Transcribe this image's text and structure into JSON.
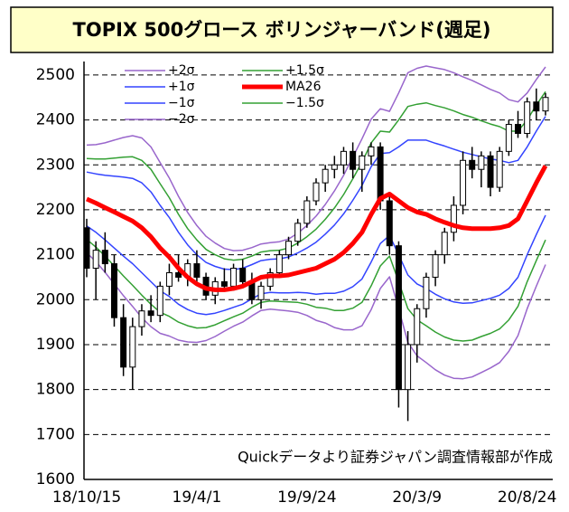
{
  "chart_data": {
    "type": "candlestick",
    "title": "TOPIX 500グロース ボリンジャーバンド(週足)",
    "annotation": "Quickデータより証券ジャパン調査情報部が作成",
    "categories": [
      "18/10/15",
      null,
      null,
      null,
      null,
      null,
      null,
      null,
      null,
      null,
      null,
      null,
      "19/4/1",
      null,
      null,
      null,
      null,
      null,
      null,
      null,
      null,
      null,
      null,
      null,
      "19/9/24",
      null,
      null,
      null,
      null,
      null,
      null,
      null,
      null,
      null,
      null,
      null,
      "20/3/9",
      null,
      null,
      null,
      null,
      null,
      null,
      null,
      null,
      null,
      null,
      null,
      "20/8/24",
      null,
      null
    ],
    "ylim": [
      1600,
      2530
    ],
    "yticks": [
      1600,
      1700,
      1800,
      1900,
      2000,
      2100,
      2200,
      2300,
      2400,
      2500
    ],
    "grid": true,
    "candles": {
      "up_color": "#ffffff",
      "down_color": "#000000",
      "open": [
        2160,
        2070,
        2110,
        2080,
        1960,
        1850,
        1940,
        1975,
        1965,
        2030,
        2060,
        2050,
        2080,
        2050,
        2010,
        2040,
        2030,
        2070,
        2040,
        2000,
        2030,
        2060,
        2100,
        2130,
        2170,
        2220,
        2260,
        2290,
        2300,
        2330,
        2290,
        2320,
        2340,
        2220,
        2120,
        1800,
        1900,
        1980,
        2050,
        2100,
        2150,
        2210,
        2310,
        2290,
        2320,
        2250,
        2330,
        2390,
        2370,
        2440,
        2420
      ],
      "high": [
        2180,
        2130,
        2150,
        2100,
        1990,
        1960,
        1990,
        2010,
        2040,
        2080,
        2100,
        2090,
        2110,
        2060,
        2050,
        2070,
        2080,
        2090,
        2060,
        2040,
        2070,
        2110,
        2140,
        2180,
        2230,
        2270,
        2300,
        2320,
        2340,
        2350,
        2330,
        2350,
        2350,
        2240,
        2130,
        1930,
        1990,
        2060,
        2110,
        2160,
        2230,
        2330,
        2340,
        2330,
        2330,
        2340,
        2400,
        2420,
        2450,
        2470,
        2460
      ],
      "low": [
        2050,
        2000,
        2060,
        1940,
        1830,
        1800,
        1920,
        1950,
        1950,
        2010,
        2040,
        2030,
        2040,
        2000,
        1990,
        2020,
        2020,
        2030,
        1990,
        1980,
        2020,
        2050,
        2090,
        2120,
        2160,
        2210,
        2240,
        2270,
        2280,
        2270,
        2240,
        2300,
        2200,
        2100,
        1760,
        1730,
        1860,
        1960,
        2030,
        2080,
        2130,
        2190,
        2270,
        2250,
        2230,
        2240,
        2320,
        2360,
        2360,
        2400,
        2410
      ],
      "close": [
        2070,
        2110,
        2080,
        1960,
        1850,
        1940,
        1975,
        1965,
        2030,
        2060,
        2050,
        2080,
        2050,
        2010,
        2040,
        2030,
        2070,
        2040,
        2000,
        2030,
        2060,
        2100,
        2130,
        2170,
        2220,
        2260,
        2290,
        2300,
        2330,
        2290,
        2320,
        2340,
        2220,
        2120,
        1800,
        1900,
        1980,
        2050,
        2100,
        2150,
        2210,
        2310,
        2290,
        2320,
        2250,
        2330,
        2390,
        2370,
        2440,
        2420,
        2450
      ]
    },
    "series": [
      {
        "name": "+2σ",
        "color": "#9966cc",
        "width": 1.5,
        "values": [
          2344,
          2345,
          2349,
          2355,
          2361,
          2365,
          2360,
          2340,
          2305,
          2271,
          2230,
          2194,
          2165,
          2141,
          2126,
          2114,
          2109,
          2110,
          2116,
          2124,
          2127,
          2129,
          2135,
          2148,
          2165,
          2186,
          2212,
          2242,
          2277,
          2317,
          2358,
          2402,
          2425,
          2419,
          2460,
          2505,
          2515,
          2520,
          2516,
          2512,
          2505,
          2496,
          2488,
          2478,
          2468,
          2460,
          2445,
          2440,
          2460,
          2490,
          2518
        ]
      },
      {
        "name": "+1.5σ",
        "color": "#33a033",
        "width": 1.5,
        "values": [
          2314,
          2313,
          2313,
          2315,
          2317,
          2318,
          2310,
          2290,
          2258,
          2227,
          2190,
          2158,
          2133,
          2112,
          2100,
          2091,
          2088,
          2090,
          2097,
          2106,
          2109,
          2110,
          2115,
          2126,
          2140,
          2157,
          2179,
          2204,
          2234,
          2269,
          2306,
          2349,
          2375,
          2373,
          2400,
          2430,
          2435,
          2438,
          2432,
          2427,
          2420,
          2412,
          2406,
          2398,
          2391,
          2385,
          2375,
          2375,
          2400,
          2433,
          2463
        ]
      },
      {
        "name": "+1σ",
        "color": "#3344ff",
        "width": 1.5,
        "values": [
          2284,
          2280,
          2277,
          2275,
          2273,
          2270,
          2260,
          2240,
          2210,
          2183,
          2150,
          2122,
          2100,
          2083,
          2074,
          2068,
          2067,
          2070,
          2078,
          2087,
          2090,
          2091,
          2095,
          2104,
          2115,
          2128,
          2146,
          2166,
          2191,
          2221,
          2254,
          2296,
          2325,
          2327,
          2340,
          2355,
          2355,
          2355,
          2348,
          2342,
          2335,
          2328,
          2323,
          2318,
          2313,
          2310,
          2305,
          2310,
          2340,
          2375,
          2408
        ]
      },
      {
        "name": "MA26",
        "color": "#ff0000",
        "width": 5,
        "values": [
          2224,
          2215,
          2205,
          2195,
          2185,
          2175,
          2160,
          2140,
          2115,
          2095,
          2070,
          2050,
          2035,
          2025,
          2022,
          2022,
          2025,
          2030,
          2040,
          2050,
          2053,
          2053,
          2055,
          2060,
          2065,
          2070,
          2080,
          2090,
          2105,
          2125,
          2150,
          2190,
          2225,
          2235,
          2220,
          2205,
          2195,
          2190,
          2180,
          2172,
          2165,
          2160,
          2158,
          2158,
          2158,
          2160,
          2165,
          2180,
          2220,
          2260,
          2298
        ]
      },
      {
        "name": "−1σ",
        "color": "#3344ff",
        "width": 1.5,
        "values": [
          2164,
          2150,
          2133,
          2115,
          2097,
          2080,
          2060,
          2040,
          2020,
          2007,
          1990,
          1978,
          1970,
          1967,
          1970,
          1976,
          1983,
          1990,
          2002,
          2013,
          2016,
          2015,
          2015,
          2016,
          2015,
          2012,
          2014,
          2014,
          2019,
          2029,
          2046,
          2084,
          2125,
          2143,
          2100,
          2055,
          2035,
          2025,
          2012,
          2002,
          1995,
          1992,
          1993,
          1998,
          2003,
          2010,
          2025,
          2050,
          2100,
          2145,
          2188
        ]
      },
      {
        "name": "−1.5σ",
        "color": "#33a033",
        "width": 1.5,
        "values": [
          2134,
          2117,
          2097,
          2075,
          2053,
          2032,
          2010,
          1990,
          1972,
          1963,
          1950,
          1942,
          1937,
          1938,
          1944,
          1953,
          1962,
          1970,
          1983,
          1994,
          1997,
          1996,
          1995,
          1994,
          1990,
          1983,
          1981,
          1976,
          1976,
          1981,
          1994,
          2031,
          2075,
          2097,
          2040,
          1980,
          1955,
          1942,
          1928,
          1917,
          1910,
          1908,
          1910,
          1918,
          1925,
          1935,
          1955,
          1985,
          2040,
          2087,
          2133
        ]
      },
      {
        "name": "−2σ",
        "color": "#9966cc",
        "width": 1.5,
        "values": [
          2104,
          2085,
          2061,
          2035,
          2009,
          1985,
          1960,
          1940,
          1925,
          1919,
          1910,
          1906,
          1905,
          1909,
          1918,
          1930,
          1941,
          1950,
          1964,
          1976,
          1979,
          1977,
          1975,
          1972,
          1965,
          1954,
          1948,
          1938,
          1933,
          1933,
          1942,
          1978,
          2025,
          2051,
          1980,
          1905,
          1875,
          1860,
          1844,
          1832,
          1825,
          1824,
          1828,
          1838,
          1848,
          1860,
          1885,
          1920,
          1980,
          2030,
          2078
        ]
      }
    ],
    "legend": "upper-left"
  }
}
